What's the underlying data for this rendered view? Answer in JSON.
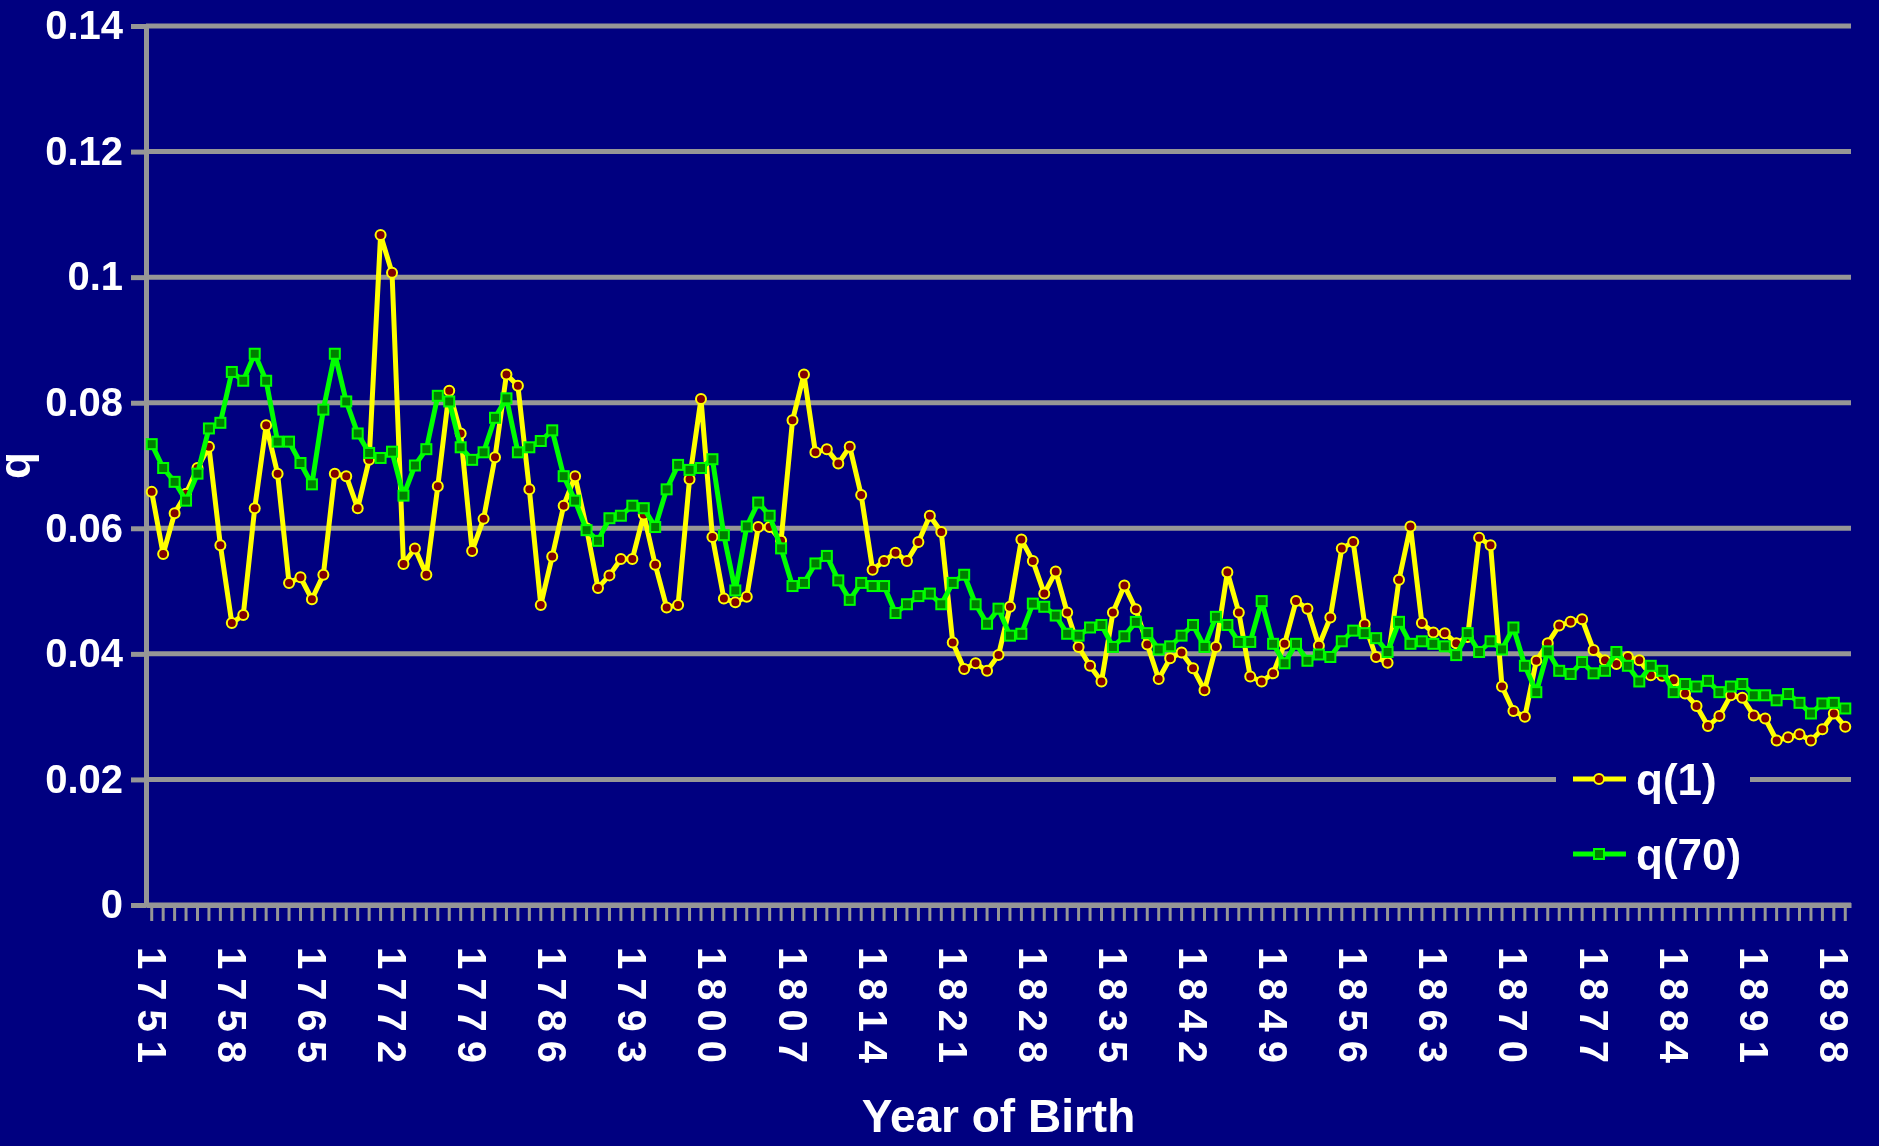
{
  "chart_data": {
    "type": "line",
    "xlabel": "Year of Birth",
    "ylabel": "q",
    "categories": [
      "1751",
      null,
      null,
      null,
      null,
      null,
      null,
      "1758",
      null,
      null,
      null,
      null,
      null,
      null,
      "1765",
      null,
      null,
      null,
      null,
      null,
      null,
      "1772",
      null,
      null,
      null,
      null,
      null,
      null,
      "1779",
      null,
      null,
      null,
      null,
      null,
      null,
      "1786",
      null,
      null,
      null,
      null,
      null,
      null,
      "1793",
      null,
      null,
      null,
      null,
      null,
      null,
      "1800",
      null,
      null,
      null,
      null,
      null,
      null,
      "1807",
      null,
      null,
      null,
      null,
      null,
      null,
      "1814",
      null,
      null,
      null,
      null,
      null,
      null,
      "1821",
      null,
      null,
      null,
      null,
      null,
      null,
      "1828",
      null,
      null,
      null,
      null,
      null,
      null,
      "1835",
      null,
      null,
      null,
      null,
      null,
      null,
      "1842",
      null,
      null,
      null,
      null,
      null,
      null,
      "1849",
      null,
      null,
      null,
      null,
      null,
      null,
      "1856",
      null,
      null,
      null,
      null,
      null,
      null,
      "1863",
      null,
      null,
      null,
      null,
      null,
      null,
      "1870",
      null,
      null,
      null,
      null,
      null,
      null,
      "1877",
      null,
      null,
      null,
      null,
      null,
      null,
      "1884",
      null,
      null,
      null,
      null,
      null,
      null,
      "1891",
      null,
      null,
      null,
      null,
      null,
      null,
      "1898",
      null
    ],
    "series": [
      {
        "name": "q(1)",
        "color": "#ffff00",
        "marker": "circle",
        "values": [
          0.0658,
          0.0559,
          0.0624,
          0.0655,
          0.0696,
          0.073,
          0.0573,
          0.0449,
          0.0462,
          0.0632,
          0.0764,
          0.0687,
          0.0513,
          0.0522,
          0.0487,
          0.0526,
          0.0687,
          0.0683,
          0.0632,
          0.0709,
          0.1067,
          0.1007,
          0.0543,
          0.0568,
          0.0526,
          0.0667,
          0.0819,
          0.0751,
          0.0564,
          0.0615,
          0.0713,
          0.0845,
          0.0827,
          0.0662,
          0.0478,
          0.0555,
          0.0636,
          0.0683,
          0.06,
          0.0505,
          0.0525,
          0.0551,
          0.0551,
          0.0622,
          0.0542,
          0.0474,
          0.0478,
          0.0678,
          0.0806,
          0.0586,
          0.0488,
          0.0482,
          0.0491,
          0.0602,
          0.0602,
          0.058,
          0.0772,
          0.0845,
          0.0721,
          0.0726,
          0.0703,
          0.073,
          0.0653,
          0.0534,
          0.0548,
          0.0561,
          0.0548,
          0.0578,
          0.062,
          0.0594,
          0.0418,
          0.0376,
          0.0385,
          0.0373,
          0.0398,
          0.0475,
          0.0582,
          0.0548,
          0.0496,
          0.0531,
          0.0466,
          0.0411,
          0.0381,
          0.0356,
          0.0466,
          0.0509,
          0.0471,
          0.0415,
          0.036,
          0.0393,
          0.0402,
          0.0377,
          0.0342,
          0.0411,
          0.053,
          0.0466,
          0.0364,
          0.0356,
          0.0369,
          0.0416,
          0.0484,
          0.0472,
          0.0413,
          0.0458,
          0.0568,
          0.0578,
          0.0447,
          0.0395,
          0.0386,
          0.0518,
          0.0603,
          0.0449,
          0.0434,
          0.0433,
          0.0417,
          0.0427,
          0.0585,
          0.0573,
          0.0348,
          0.0309,
          0.03,
          0.0389,
          0.0417,
          0.0445,
          0.0451,
          0.0455,
          0.0406,
          0.039,
          0.0384,
          0.0395,
          0.039,
          0.0366,
          0.0365,
          0.0358,
          0.0337,
          0.0317,
          0.0285,
          0.0301,
          0.0334,
          0.033,
          0.0302,
          0.0297,
          0.0262,
          0.0267,
          0.0272,
          0.0262,
          0.028,
          0.0305,
          0.0284
        ]
      },
      {
        "name": "q(70)",
        "color": "#00ff00",
        "marker": "square",
        "values": [
          0.0734,
          0.0696,
          0.0674,
          0.0644,
          0.0687,
          0.0759,
          0.0768,
          0.0849,
          0.0835,
          0.0878,
          0.0835,
          0.0738,
          0.0738,
          0.0704,
          0.067,
          0.0789,
          0.0878,
          0.0802,
          0.0751,
          0.072,
          0.0712,
          0.0722,
          0.0652,
          0.07,
          0.0726,
          0.0811,
          0.0802,
          0.0729,
          0.0709,
          0.0721,
          0.0776,
          0.0807,
          0.0721,
          0.0729,
          0.0739,
          0.0756,
          0.0683,
          0.0644,
          0.0597,
          0.058,
          0.0616,
          0.062,
          0.0636,
          0.0632,
          0.0602,
          0.0662,
          0.0701,
          0.0693,
          0.0696,
          0.071,
          0.0589,
          0.0501,
          0.0603,
          0.0641,
          0.062,
          0.0568,
          0.0508,
          0.0513,
          0.0544,
          0.0556,
          0.0517,
          0.0486,
          0.0513,
          0.0508,
          0.0508,
          0.0465,
          0.0479,
          0.0492,
          0.0496,
          0.0479,
          0.0513,
          0.0526,
          0.0479,
          0.0448,
          0.0472,
          0.0429,
          0.0432,
          0.048,
          0.0475,
          0.0461,
          0.0432,
          0.0429,
          0.0442,
          0.0446,
          0.0411,
          0.0428,
          0.0451,
          0.0433,
          0.0407,
          0.0412,
          0.0429,
          0.0446,
          0.0411,
          0.0459,
          0.0446,
          0.0419,
          0.0419,
          0.0484,
          0.0416,
          0.0385,
          0.0416,
          0.0389,
          0.0399,
          0.0395,
          0.042,
          0.0437,
          0.0433,
          0.0425,
          0.0403,
          0.0451,
          0.0416,
          0.042,
          0.0416,
          0.0412,
          0.0398,
          0.0433,
          0.0403,
          0.042,
          0.0407,
          0.0442,
          0.0381,
          0.0339,
          0.0404,
          0.0373,
          0.0368,
          0.0387,
          0.0369,
          0.0373,
          0.0403,
          0.0381,
          0.0356,
          0.0381,
          0.0373,
          0.0339,
          0.0352,
          0.0348,
          0.0357,
          0.0339,
          0.0348,
          0.0352,
          0.0334,
          0.0334,
          0.0326,
          0.0336,
          0.0322,
          0.0305,
          0.0321,
          0.0322,
          0.0313
        ]
      }
    ],
    "ylim": [
      0,
      0.14
    ],
    "yticks": [
      0,
      0.02,
      0.04,
      0.06,
      0.08,
      0.1,
      0.12,
      0.14
    ],
    "grid": "y",
    "legend": "bottom right",
    "line_style": "solid"
  }
}
